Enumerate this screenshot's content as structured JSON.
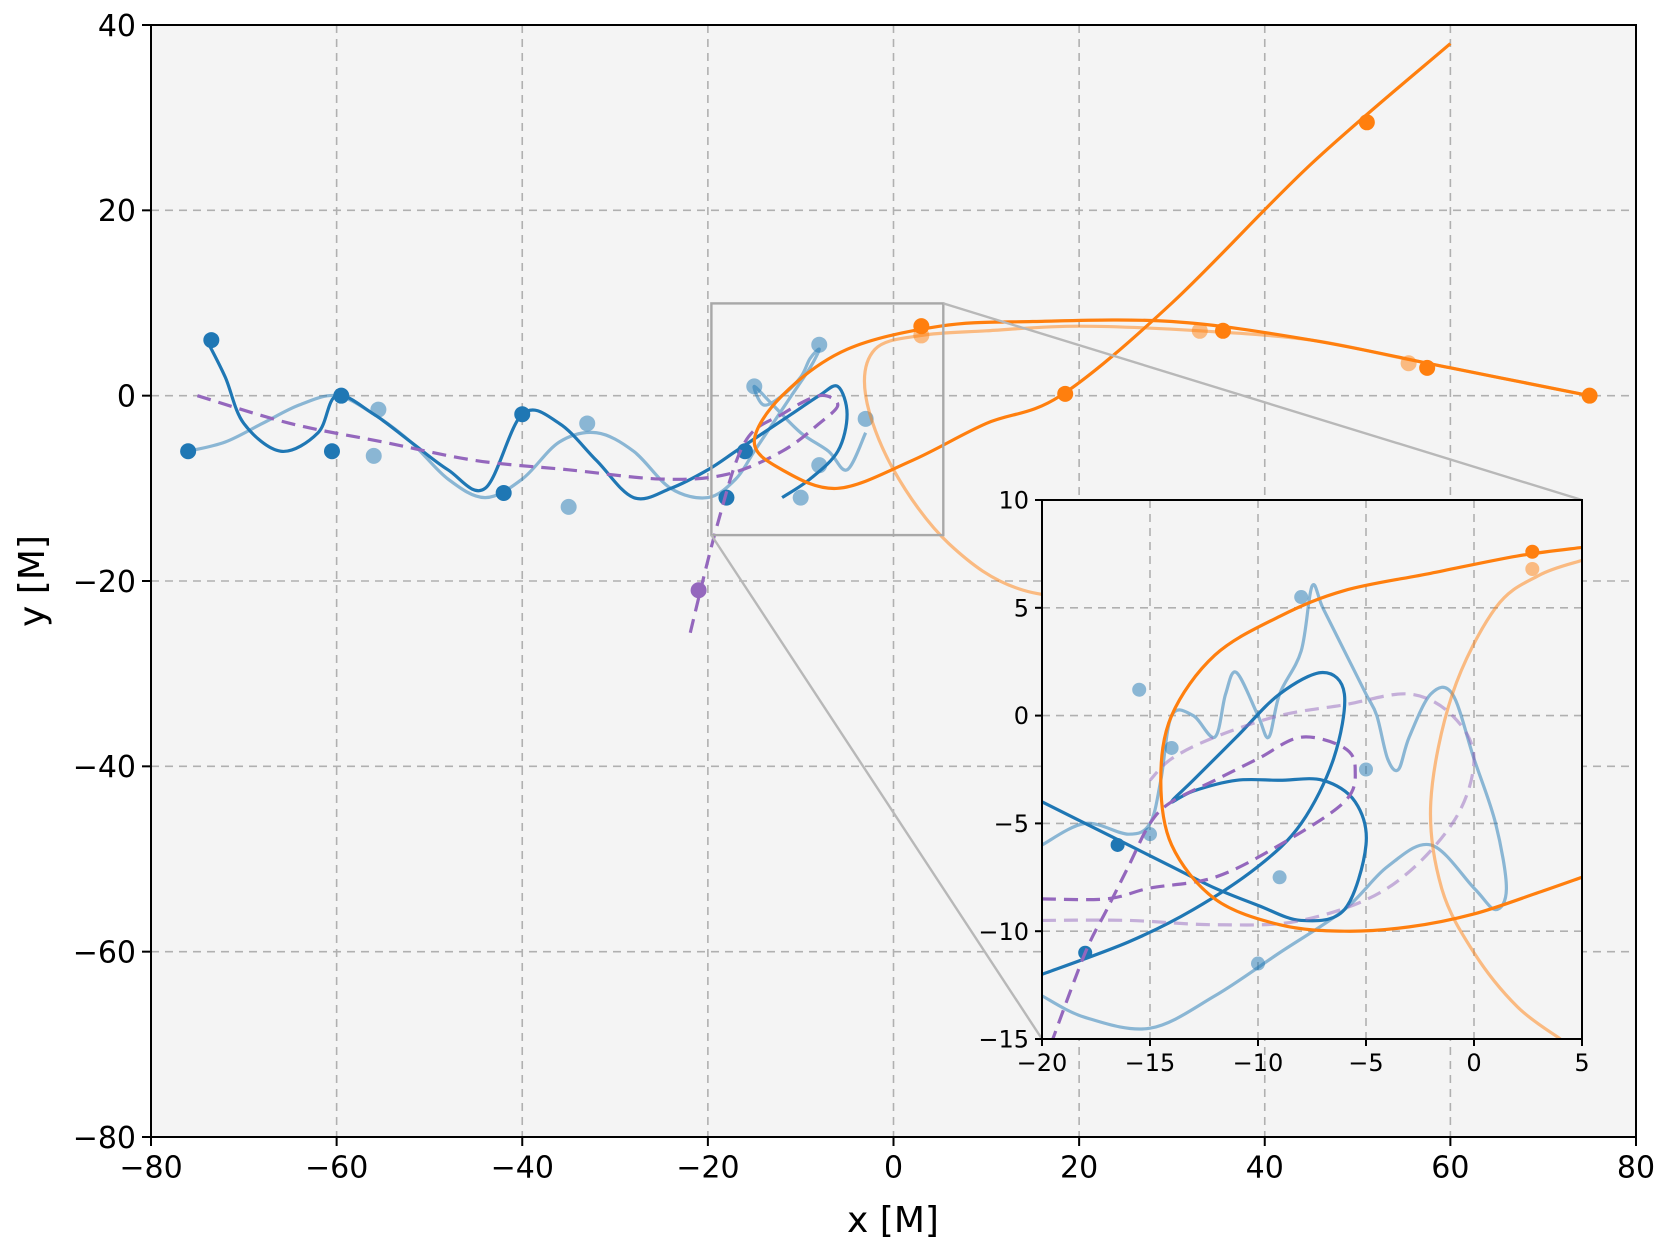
{
  "chart_data": [
    {
      "type": "line",
      "panel": "main",
      "xlabel": "x [M]",
      "ylabel": "y [M]",
      "xlim": [
        -80,
        80
      ],
      "ylim": [
        -80,
        40
      ],
      "xticks": [
        -80,
        -60,
        -40,
        -20,
        0,
        20,
        40,
        60,
        80
      ],
      "yticks": [
        -80,
        -60,
        -40,
        -20,
        0,
        20,
        40
      ],
      "xtick_labels": [
        "−80",
        "−60",
        "−40",
        "−20",
        "0",
        "20",
        "40",
        "60",
        "80"
      ],
      "ytick_labels": [
        "−80",
        "−60",
        "−40",
        "−20",
        "0",
        "20",
        "40"
      ],
      "grid": true,
      "zoom_box": {
        "x": [
          -20,
          5
        ],
        "y": [
          -15,
          10
        ]
      },
      "series": [
        {
          "color": "#1f77b4",
          "alpha": 0.5,
          "style": "solid",
          "x": [
            -76,
            -72,
            -68,
            -64,
            -60,
            -56,
            -52,
            -48,
            -44,
            -40,
            -36,
            -32,
            -28,
            -24,
            -20,
            -17,
            -15,
            -13,
            -11,
            -9,
            -8,
            -9,
            -10,
            -12,
            -14,
            -15,
            -13,
            -10,
            -7,
            -5,
            -3
          ],
          "y": [
            -6,
            -5,
            -3,
            -1,
            0,
            -2,
            -5,
            -9,
            -11,
            -9,
            -5,
            -4,
            -6,
            -10,
            -11,
            -9,
            -6,
            -3,
            0,
            3,
            5,
            4,
            2,
            0,
            -1,
            1,
            -1,
            -4,
            -6,
            -8,
            -4
          ],
          "markers_x": [
            -55.5,
            -56,
            -35,
            -33,
            -15,
            -8,
            -8,
            -3,
            -10
          ],
          "markers_y": [
            -1.5,
            -6.5,
            -12,
            -3,
            1,
            5.5,
            -7.5,
            -2.5,
            -11
          ]
        },
        {
          "color": "#1f77b4",
          "alpha": 1.0,
          "style": "solid",
          "x": [
            -74,
            -72,
            -70,
            -66,
            -62,
            -60,
            -56,
            -52,
            -48,
            -44,
            -40,
            -36,
            -32,
            -28,
            -24,
            -20,
            -17,
            -14,
            -11,
            -8,
            -6,
            -5,
            -6,
            -9,
            -12
          ],
          "y": [
            6,
            2,
            -3,
            -6,
            -4,
            0,
            -2,
            -5,
            -8,
            -10,
            -2,
            -3,
            -7,
            -11,
            -10,
            -8,
            -6,
            -4,
            -2,
            0,
            1,
            -2,
            -6,
            -9,
            -11
          ],
          "markers_x": [
            -73.5,
            -59.5,
            -60.5,
            -42,
            -40,
            -16,
            -18,
            -76
          ],
          "markers_y": [
            6,
            0,
            -6,
            -10.5,
            -2,
            -6,
            -11,
            -6
          ]
        },
        {
          "color": "#9467bd",
          "alpha": 1.0,
          "style": "dashed",
          "x": [
            -75,
            -65,
            -55,
            -45,
            -35,
            -25,
            -18,
            -12,
            -8,
            -6,
            -8,
            -12,
            -16,
            -19,
            -22
          ],
          "y": [
            0,
            -3,
            -5,
            -7,
            -8,
            -9,
            -8.5,
            -6,
            -3,
            -1,
            0,
            -2,
            -5,
            -14,
            -26
          ],
          "markers_x": [
            -21
          ],
          "markers_y": [
            -21
          ]
        },
        {
          "color": "#ff7f0e",
          "alpha": 0.5,
          "style": "solid",
          "x": [
            75,
            65,
            55,
            45,
            33,
            20,
            10,
            3,
            -2,
            -3,
            0,
            6,
            14,
            26,
            40,
            55
          ],
          "y": [
            0,
            2,
            4,
            6,
            7,
            7.5,
            7,
            6.5,
            5,
            0,
            -8,
            -16,
            -21,
            -22,
            -22,
            -21
          ],
          "markers_x": [
            55.5,
            33,
            3
          ],
          "markers_y": [
            3.5,
            7,
            6.5
          ]
        },
        {
          "color": "#ff7f0e",
          "alpha": 1.0,
          "style": "solid",
          "x": [
            75,
            60,
            45,
            30,
            15,
            5,
            -5,
            -12,
            -15,
            -12,
            -6,
            2,
            10,
            18,
            30,
            45,
            60
          ],
          "y": [
            0,
            3,
            6,
            8,
            8,
            7.5,
            5,
            0,
            -5,
            -8,
            -10,
            -7,
            -3,
            0,
            10,
            25,
            38
          ],
          "markers_x": [
            75,
            57.5,
            35.5,
            3,
            18.5,
            51
          ],
          "markers_y": [
            0,
            3,
            7,
            7.5,
            0.2,
            29.5
          ]
        }
      ]
    },
    {
      "type": "line",
      "panel": "inset",
      "xlim": [
        -20,
        5
      ],
      "ylim": [
        -15,
        10
      ],
      "xticks": [
        -20,
        -15,
        -10,
        -5,
        0,
        5
      ],
      "yticks": [
        -15,
        -10,
        -5,
        0,
        5,
        10
      ],
      "xtick_labels": [
        "−20",
        "−15",
        "−10",
        "−5",
        "0",
        "5"
      ],
      "ytick_labels": [
        "−15",
        "−10",
        "−5",
        "0",
        "5",
        "10"
      ],
      "grid": true,
      "series": [
        {
          "color": "#1f77b4",
          "alpha": 0.5,
          "style": "solid",
          "x": [
            -20,
            -18,
            -16,
            -15,
            -14.5,
            -14,
            -13,
            -12,
            -11.5,
            -11,
            -10,
            -9.5,
            -9,
            -8,
            -7.5,
            -7,
            -6,
            -5,
            -4.5,
            -4,
            -3.5,
            -3,
            -2,
            -1,
            0,
            1,
            1.5,
            1,
            0,
            -2,
            -4,
            -6,
            -9,
            -12,
            -15,
            -18,
            -20
          ],
          "y": [
            -6,
            -5,
            -5.5,
            -5,
            -3,
            0,
            0,
            -1,
            1,
            2,
            0,
            -1,
            1,
            3,
            6,
            5,
            3,
            1,
            0,
            -2,
            -2.5,
            -1,
            1,
            1,
            -2,
            -5,
            -8,
            -9,
            -8,
            -6,
            -7,
            -9,
            -11,
            -13,
            -14.5,
            -14,
            -13
          ],
          "markers_x": [
            -15,
            -14,
            -15.5,
            -10,
            -8,
            -5,
            -9
          ],
          "markers_y": [
            -5.5,
            -1.5,
            1.2,
            -11.5,
            5.5,
            -2.5,
            -7.5
          ]
        },
        {
          "color": "#1f77b4",
          "alpha": 1.0,
          "style": "solid",
          "x": [
            -20,
            -18,
            -16,
            -14,
            -12,
            -10,
            -8,
            -6,
            -5,
            -5.5,
            -7,
            -9,
            -11,
            -13,
            -14,
            -13,
            -11,
            -9,
            -7,
            -6,
            -6.5,
            -8,
            -10,
            -13,
            -16,
            -20
          ],
          "y": [
            -4,
            -5,
            -6,
            -7,
            -8,
            -8.8,
            -9.5,
            -9,
            -6,
            -4,
            -3,
            -3,
            -3,
            -3.5,
            -4,
            -3,
            -1,
            1,
            2,
            1,
            -2,
            -5,
            -7,
            -9,
            -10.5,
            -12
          ],
          "markers_x": [
            -16.5,
            -18
          ],
          "markers_y": [
            -6,
            -11
          ]
        },
        {
          "color": "#9467bd",
          "alpha": 0.5,
          "style": "dashed",
          "x": [
            -20,
            -16,
            -12,
            -8,
            -4,
            -1,
            0,
            -1,
            -3,
            -6,
            -9,
            -12,
            -14,
            -15
          ],
          "y": [
            -9.5,
            -9.5,
            -9.7,
            -9.5,
            -8,
            -5,
            -2,
            0,
            1,
            0.5,
            0,
            -1,
            -2,
            -3
          ],
          "markers_x": [],
          "markers_y": []
        },
        {
          "color": "#9467bd",
          "alpha": 1.0,
          "style": "dashed",
          "x": [
            -20,
            -17,
            -15,
            -12,
            -9,
            -6,
            -5.5,
            -6,
            -8,
            -10,
            -12,
            -14,
            -15,
            -16,
            -17,
            -18,
            -19.5
          ],
          "y": [
            -8.5,
            -8.5,
            -8,
            -7.5,
            -6,
            -4,
            -2.5,
            -1.5,
            -1,
            -2,
            -3,
            -4,
            -5,
            -7,
            -9,
            -11,
            -15
          ],
          "markers_x": [],
          "markers_y": []
        },
        {
          "color": "#ff7f0e",
          "alpha": 0.5,
          "style": "solid",
          "x": [
            5,
            3,
            1,
            -1,
            -2,
            -1.5,
            0,
            2,
            4
          ],
          "y": [
            7.2,
            6.5,
            5,
            1,
            -4,
            -8,
            -11,
            -13.5,
            -15
          ],
          "markers_x": [
            2.7
          ],
          "markers_y": [
            6.8
          ]
        },
        {
          "color": "#ff7f0e",
          "alpha": 1.0,
          "style": "solid",
          "x": [
            5,
            2,
            -2,
            -6,
            -9,
            -12,
            -14,
            -14.5,
            -14,
            -12,
            -9,
            -6,
            -3,
            0,
            3,
            5
          ],
          "y": [
            7.8,
            7.4,
            6.6,
            5.8,
            4.6,
            2.8,
            0,
            -3,
            -6,
            -8.5,
            -9.7,
            -10,
            -9.8,
            -9.2,
            -8.2,
            -7.5
          ],
          "markers_x": [
            2.7
          ],
          "markers_y": [
            7.6
          ]
        }
      ]
    }
  ]
}
